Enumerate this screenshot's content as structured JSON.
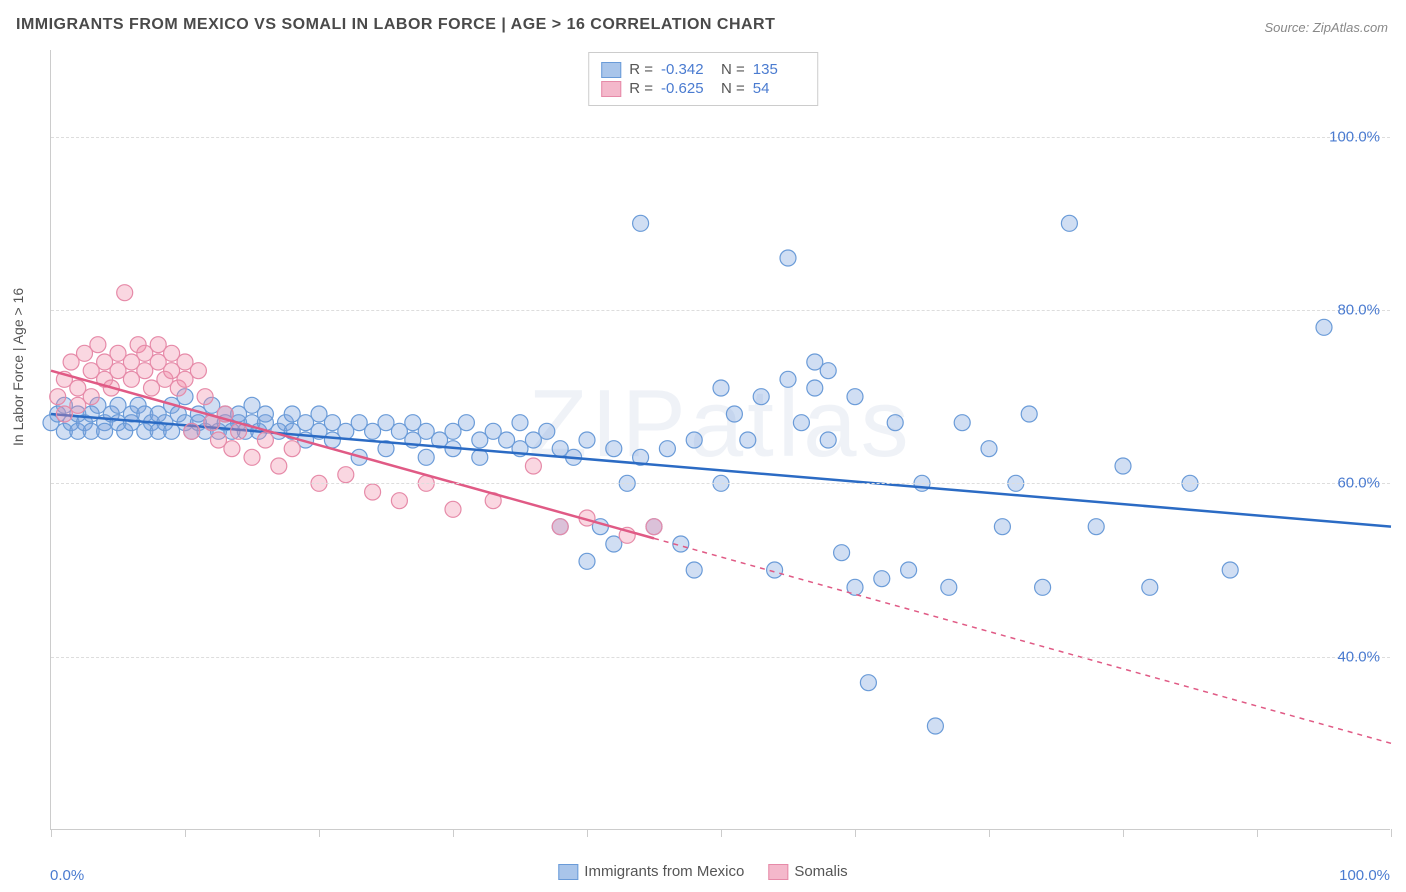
{
  "title": "IMMIGRANTS FROM MEXICO VS SOMALI IN LABOR FORCE | AGE > 16 CORRELATION CHART",
  "source": "Source: ZipAtlas.com",
  "watermark": "ZIPatlas",
  "yaxis_title": "In Labor Force | Age > 16",
  "chart": {
    "type": "scatter-correlation",
    "xlim": [
      0,
      100
    ],
    "ylim": [
      20,
      110
    ],
    "ytick_positions": [
      40,
      60,
      80,
      100
    ],
    "ytick_labels": [
      "40.0%",
      "60.0%",
      "80.0%",
      "100.0%"
    ],
    "xtick_positions": [
      0,
      10,
      20,
      30,
      40,
      50,
      60,
      70,
      80,
      90,
      100
    ],
    "xaxis_min_label": "0.0%",
    "xaxis_max_label": "100.0%",
    "background_color": "#ffffff",
    "grid_color": "#dddddd",
    "axis_color": "#cccccc",
    "label_color": "#4a7bd0",
    "marker_radius": 8,
    "marker_stroke_width": 1.2,
    "trend_line_width": 2.5,
    "series": [
      {
        "name": "Immigrants from Mexico",
        "fill_color": "rgba(120,160,220,0.35)",
        "stroke_color": "#6a9bd8",
        "line_color": "#2b6bc4",
        "swatch_fill": "#a9c5ea",
        "swatch_border": "#6a9bd8",
        "R": "-0.342",
        "N": "135",
        "trend": {
          "x1": 0,
          "y1": 68,
          "x2": 100,
          "y2": 55,
          "solid_until_x": 100
        },
        "points": [
          [
            0,
            67
          ],
          [
            0.5,
            68
          ],
          [
            1,
            66
          ],
          [
            1,
            69
          ],
          [
            1.5,
            67
          ],
          [
            2,
            68
          ],
          [
            2,
            66
          ],
          [
            2.5,
            67
          ],
          [
            3,
            68
          ],
          [
            3,
            66
          ],
          [
            3.5,
            69
          ],
          [
            4,
            67
          ],
          [
            4,
            66
          ],
          [
            4.5,
            68
          ],
          [
            5,
            67
          ],
          [
            5,
            69
          ],
          [
            5.5,
            66
          ],
          [
            6,
            68
          ],
          [
            6,
            67
          ],
          [
            6.5,
            69
          ],
          [
            7,
            66
          ],
          [
            7,
            68
          ],
          [
            7.5,
            67
          ],
          [
            8,
            66
          ],
          [
            8,
            68
          ],
          [
            8.5,
            67
          ],
          [
            9,
            66
          ],
          [
            9,
            69
          ],
          [
            9.5,
            68
          ],
          [
            10,
            67
          ],
          [
            10,
            70
          ],
          [
            10.5,
            66
          ],
          [
            11,
            68
          ],
          [
            11,
            67
          ],
          [
            11.5,
            66
          ],
          [
            12,
            69
          ],
          [
            12,
            67
          ],
          [
            12.5,
            66
          ],
          [
            13,
            68
          ],
          [
            13,
            67
          ],
          [
            13.5,
            66
          ],
          [
            14,
            67
          ],
          [
            14,
            68
          ],
          [
            14.5,
            66
          ],
          [
            15,
            67
          ],
          [
            15,
            69
          ],
          [
            15.5,
            66
          ],
          [
            16,
            67
          ],
          [
            16,
            68
          ],
          [
            17,
            66
          ],
          [
            17.5,
            67
          ],
          [
            18,
            66
          ],
          [
            18,
            68
          ],
          [
            19,
            67
          ],
          [
            19,
            65
          ],
          [
            20,
            66
          ],
          [
            20,
            68
          ],
          [
            21,
            67
          ],
          [
            21,
            65
          ],
          [
            22,
            66
          ],
          [
            23,
            67
          ],
          [
            23,
            63
          ],
          [
            24,
            66
          ],
          [
            25,
            67
          ],
          [
            25,
            64
          ],
          [
            26,
            66
          ],
          [
            27,
            65
          ],
          [
            27,
            67
          ],
          [
            28,
            66
          ],
          [
            28,
            63
          ],
          [
            29,
            65
          ],
          [
            30,
            66
          ],
          [
            30,
            64
          ],
          [
            31,
            67
          ],
          [
            32,
            65
          ],
          [
            32,
            63
          ],
          [
            33,
            66
          ],
          [
            34,
            65
          ],
          [
            35,
            64
          ],
          [
            35,
            67
          ],
          [
            36,
            65
          ],
          [
            37,
            66
          ],
          [
            38,
            55
          ],
          [
            38,
            64
          ],
          [
            39,
            63
          ],
          [
            40,
            51
          ],
          [
            40,
            65
          ],
          [
            41,
            55
          ],
          [
            42,
            64
          ],
          [
            42,
            53
          ],
          [
            43,
            60
          ],
          [
            44,
            90
          ],
          [
            44,
            63
          ],
          [
            45,
            55
          ],
          [
            46,
            64
          ],
          [
            47,
            53
          ],
          [
            48,
            65
          ],
          [
            48,
            50
          ],
          [
            50,
            71
          ],
          [
            50,
            60
          ],
          [
            51,
            68
          ],
          [
            52,
            65
          ],
          [
            53,
            70
          ],
          [
            54,
            50
          ],
          [
            55,
            72
          ],
          [
            55,
            86
          ],
          [
            56,
            67
          ],
          [
            57,
            74
          ],
          [
            57,
            71
          ],
          [
            58,
            65
          ],
          [
            58,
            73
          ],
          [
            59,
            52
          ],
          [
            60,
            48
          ],
          [
            60,
            70
          ],
          [
            61,
            37
          ],
          [
            62,
            49
          ],
          [
            63,
            67
          ],
          [
            64,
            50
          ],
          [
            65,
            60
          ],
          [
            66,
            32
          ],
          [
            67,
            48
          ],
          [
            68,
            67
          ],
          [
            70,
            64
          ],
          [
            71,
            55
          ],
          [
            72,
            60
          ],
          [
            73,
            68
          ],
          [
            74,
            48
          ],
          [
            76,
            90
          ],
          [
            78,
            55
          ],
          [
            80,
            62
          ],
          [
            82,
            48
          ],
          [
            85,
            60
          ],
          [
            88,
            50
          ],
          [
            95,
            78
          ]
        ]
      },
      {
        "name": "Somalis",
        "fill_color": "rgba(240,140,170,0.35)",
        "stroke_color": "#e68aa8",
        "line_color": "#e05a85",
        "swatch_fill": "#f4b8cb",
        "swatch_border": "#e68aa8",
        "R": "-0.625",
        "N": "54",
        "trend": {
          "x1": 0,
          "y1": 73,
          "x2": 100,
          "y2": 30,
          "solid_until_x": 45
        },
        "points": [
          [
            0.5,
            70
          ],
          [
            1,
            72
          ],
          [
            1,
            68
          ],
          [
            1.5,
            74
          ],
          [
            2,
            71
          ],
          [
            2,
            69
          ],
          [
            2.5,
            75
          ],
          [
            3,
            73
          ],
          [
            3,
            70
          ],
          [
            3.5,
            76
          ],
          [
            4,
            72
          ],
          [
            4,
            74
          ],
          [
            4.5,
            71
          ],
          [
            5,
            75
          ],
          [
            5,
            73
          ],
          [
            5.5,
            82
          ],
          [
            6,
            74
          ],
          [
            6,
            72
          ],
          [
            6.5,
            76
          ],
          [
            7,
            73
          ],
          [
            7,
            75
          ],
          [
            7.5,
            71
          ],
          [
            8,
            74
          ],
          [
            8,
            76
          ],
          [
            8.5,
            72
          ],
          [
            9,
            73
          ],
          [
            9,
            75
          ],
          [
            9.5,
            71
          ],
          [
            10,
            74
          ],
          [
            10,
            72
          ],
          [
            10.5,
            66
          ],
          [
            11,
            73
          ],
          [
            11.5,
            70
          ],
          [
            12,
            67
          ],
          [
            12.5,
            65
          ],
          [
            13,
            68
          ],
          [
            13.5,
            64
          ],
          [
            14,
            66
          ],
          [
            15,
            63
          ],
          [
            16,
            65
          ],
          [
            17,
            62
          ],
          [
            18,
            64
          ],
          [
            20,
            60
          ],
          [
            22,
            61
          ],
          [
            24,
            59
          ],
          [
            26,
            58
          ],
          [
            28,
            60
          ],
          [
            30,
            57
          ],
          [
            33,
            58
          ],
          [
            36,
            62
          ],
          [
            38,
            55
          ],
          [
            40,
            56
          ],
          [
            43,
            54
          ],
          [
            45,
            55
          ]
        ]
      }
    ]
  },
  "legend_top": {
    "R_label": "R =",
    "N_label": "N ="
  },
  "legend_bottom": {
    "items": [
      "Immigrants from Mexico",
      "Somalis"
    ]
  }
}
